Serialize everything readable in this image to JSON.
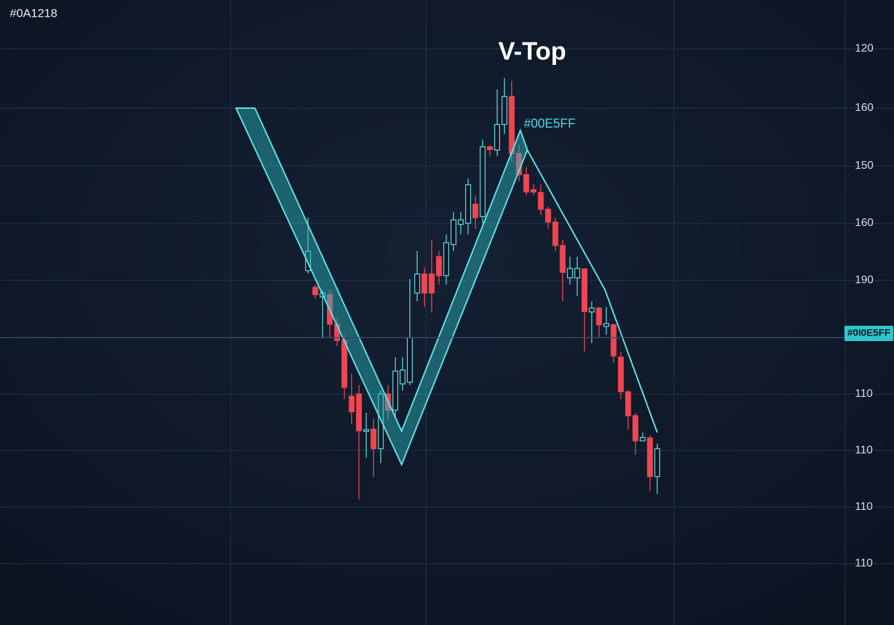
{
  "corner_label": "#0A1218",
  "pattern_label": "#00E5FF",
  "price_tag": "#0I0E5FF",
  "axis_labels": [
    "120",
    "160",
    "150",
    "160",
    "190",
    "110",
    "110",
    "110",
    "110"
  ],
  "chart_data": {
    "type": "candlestick",
    "title": "V-Top",
    "ylim": [
      0,
      112
    ],
    "colors": {
      "up": "#5ed6d9",
      "down": "#ef4652"
    },
    "open": [
      63.5,
      60.5,
      58.8,
      59.2,
      53.9,
      51,
      41,
      41.4,
      34.7,
      35.1,
      31.6,
      41.4,
      38.5,
      43.2,
      43.5,
      59.5,
      62.9,
      62.9,
      66,
      62.6,
      68.2,
      71.8,
      72,
      75.4,
      73.2,
      85.7,
      85.1,
      89.7,
      94.7,
      84.5,
      80.7,
      78,
      77.5,
      74.5,
      72.2,
      68,
      62.2,
      62.2,
      63.8,
      56.1,
      56.8,
      53.5,
      53.8,
      48,
      41.8,
      37.5,
      33,
      33.5,
      26.6
    ],
    "close": [
      67,
      59.2,
      59.5,
      53.9,
      51,
      42.6,
      38.2,
      34.8,
      35,
      31.6,
      41.4,
      38.5,
      45.5,
      45.7,
      51.5,
      62.9,
      59.5,
      59.5,
      62.6,
      68.5,
      72.6,
      72.6,
      78.9,
      73,
      85.7,
      85.2,
      89.7,
      94.7,
      84.5,
      80.7,
      77.6,
      77.6,
      74.5,
      72.2,
      68,
      63.2,
      63.9,
      63.9,
      56.2,
      56.8,
      53.8,
      54,
      48.2,
      41.8,
      37.5,
      33,
      33.6,
      26.6,
      31.6
    ],
    "high": [
      73,
      61,
      60,
      60,
      55,
      52,
      45,
      43,
      38,
      37,
      42,
      43,
      48,
      48,
      62,
      67,
      64,
      69,
      67,
      70,
      74,
      74,
      80,
      77,
      87,
      86,
      96,
      98,
      97.5,
      86,
      82,
      79,
      79,
      75,
      73,
      69,
      66,
      66,
      64,
      58,
      57,
      57,
      54,
      49,
      42,
      38,
      34.5,
      34,
      32.5
    ],
    "low": [
      63,
      58.5,
      51.5,
      51.5,
      50,
      40.5,
      36,
      22.5,
      30,
      26.5,
      29,
      37,
      37,
      42,
      43,
      58,
      57,
      56,
      61,
      61,
      67,
      70,
      70,
      71,
      72,
      84,
      84,
      88,
      83,
      79.5,
      77,
      77,
      73.5,
      71,
      67,
      58,
      61,
      59,
      49,
      50.5,
      51.5,
      52,
      47,
      40.5,
      35,
      30.5,
      33,
      24,
      23.5
    ]
  }
}
